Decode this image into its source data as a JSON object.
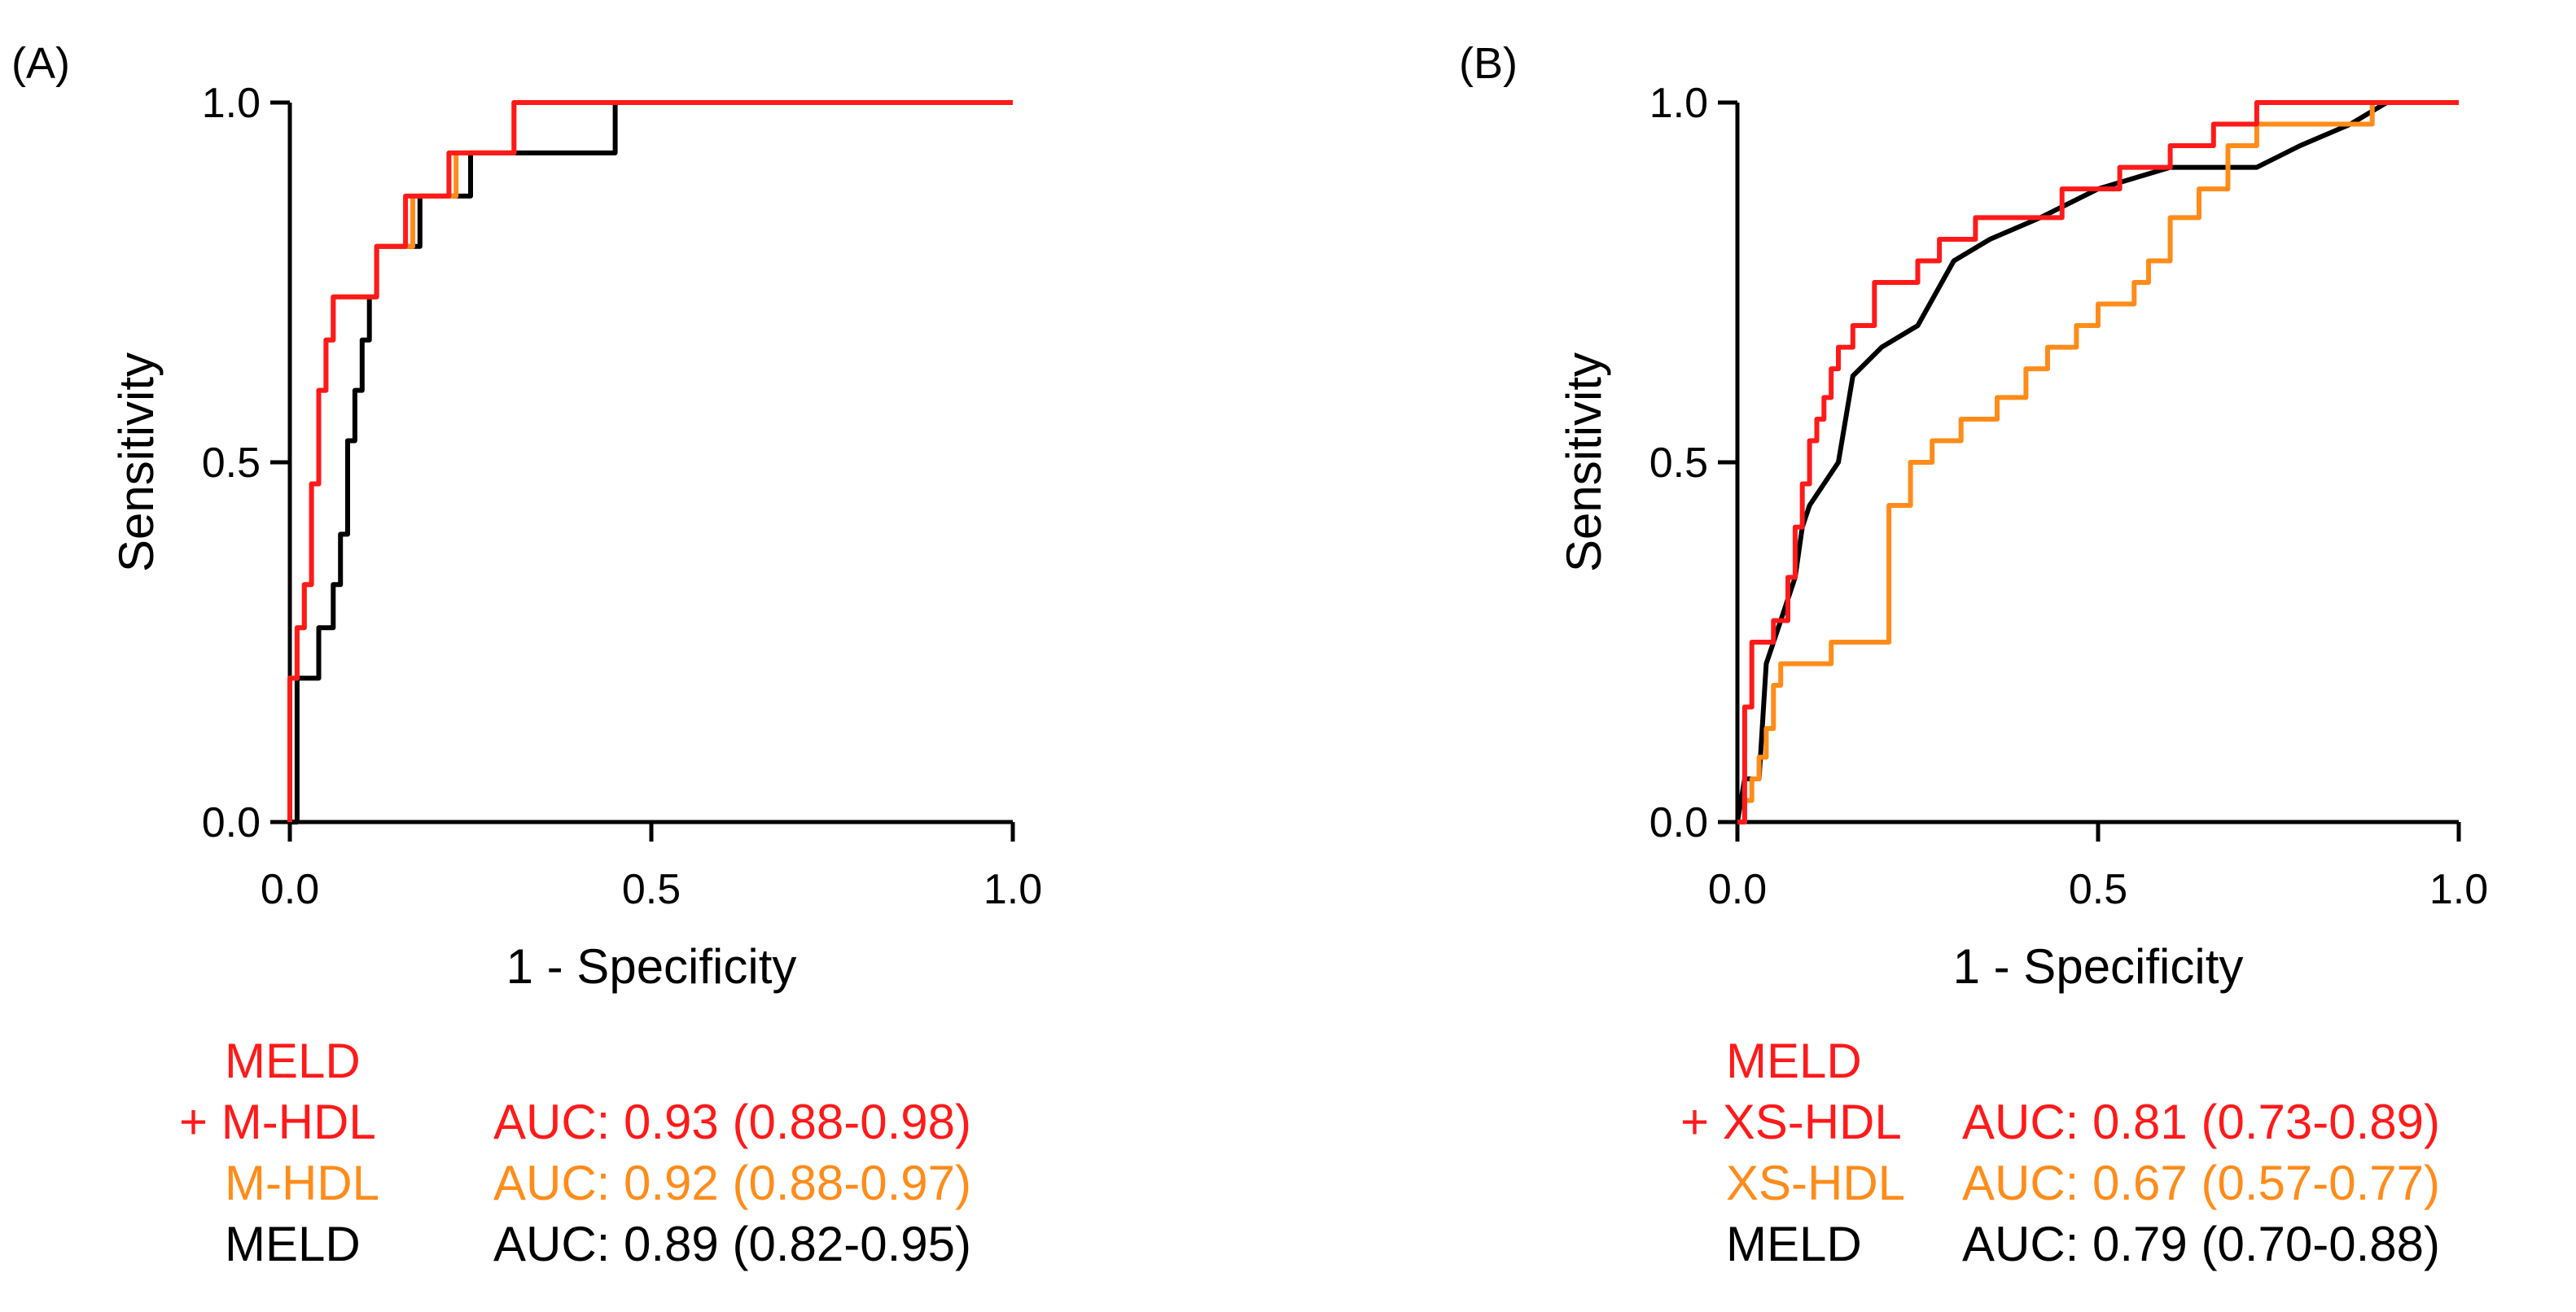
{
  "colors": {
    "combo": "#ff1a1a",
    "marker": "#ff8c1a",
    "meld": "#000000",
    "axis": "#000000"
  },
  "chart_data": [
    {
      "type": "line",
      "panel_label": "(A)",
      "xlabel": "1 - Specificity",
      "ylabel": "Sensitivity",
      "xlim": [
        0,
        1
      ],
      "ylim": [
        0,
        1
      ],
      "xticks": [
        "0.0",
        "0.5",
        "1.0"
      ],
      "yticks": [
        "0.0",
        "0.5",
        "1.0"
      ],
      "series": [
        {
          "name": "MELD + M-HDL",
          "color_key": "combo",
          "x": [
            0,
            0,
            0.01,
            0.01,
            0.02,
            0.02,
            0.03,
            0.03,
            0.04,
            0.04,
            0.05,
            0.05,
            0.06,
            0.06,
            0.12,
            0.12,
            0.16,
            0.16,
            0.22,
            0.22,
            0.31,
            0.31,
            1.0
          ],
          "y": [
            0,
            0.2,
            0.2,
            0.27,
            0.27,
            0.33,
            0.33,
            0.47,
            0.47,
            0.6,
            0.6,
            0.67,
            0.67,
            0.73,
            0.73,
            0.8,
            0.8,
            0.87,
            0.87,
            0.93,
            0.93,
            1.0,
            1.0
          ]
        },
        {
          "name": "M-HDL",
          "color_key": "marker",
          "x": [
            0,
            0,
            0.01,
            0.01,
            0.02,
            0.02,
            0.03,
            0.03,
            0.04,
            0.04,
            0.05,
            0.05,
            0.06,
            0.06,
            0.12,
            0.12,
            0.17,
            0.17,
            0.23,
            0.23,
            0.31,
            0.31,
            1.0
          ],
          "y": [
            0,
            0.2,
            0.2,
            0.27,
            0.27,
            0.33,
            0.33,
            0.47,
            0.47,
            0.6,
            0.6,
            0.67,
            0.67,
            0.73,
            0.73,
            0.8,
            0.8,
            0.87,
            0.87,
            0.93,
            0.93,
            1.0,
            1.0
          ]
        },
        {
          "name": "MELD",
          "color_key": "meld",
          "x": [
            0,
            0.01,
            0.01,
            0.04,
            0.04,
            0.06,
            0.06,
            0.07,
            0.07,
            0.08,
            0.08,
            0.09,
            0.09,
            0.1,
            0.1,
            0.11,
            0.11,
            0.12,
            0.12,
            0.13,
            0.13,
            0.18,
            0.18,
            0.25,
            0.25,
            0.28,
            0.28,
            0.45,
            0.45,
            1.0
          ],
          "y": [
            0,
            0,
            0.2,
            0.2,
            0.27,
            0.27,
            0.33,
            0.33,
            0.4,
            0.4,
            0.53,
            0.53,
            0.6,
            0.6,
            0.67,
            0.67,
            0.73,
            0.73,
            0.8,
            0.8,
            0.8,
            0.8,
            0.87,
            0.87,
            0.93,
            0.93,
            0.93,
            0.93,
            1.0,
            1.0
          ]
        }
      ],
      "legend": [
        {
          "name_lines": [
            "MELD",
            "+ M-HDL"
          ],
          "auc": "AUC: 0.93 (0.88-0.98)",
          "color_key": "combo"
        },
        {
          "name_lines": [
            "M-HDL"
          ],
          "auc": "AUC: 0.92 (0.88-0.97)",
          "color_key": "marker"
        },
        {
          "name_lines": [
            "MELD"
          ],
          "auc": "AUC: 0.89 (0.82-0.95)",
          "color_key": "meld"
        }
      ]
    },
    {
      "type": "line",
      "panel_label": "(B)",
      "xlabel": "1 - Specificity",
      "ylabel": "Sensitivity",
      "xlim": [
        0,
        1
      ],
      "ylim": [
        0,
        1
      ],
      "xticks": [
        "0.0",
        "0.5",
        "1.0"
      ],
      "yticks": [
        "0.0",
        "0.5",
        "1.0"
      ],
      "series": [
        {
          "name": "MELD + XS-HDL",
          "color_key": "combo",
          "x": [
            0,
            0.01,
            0.01,
            0.02,
            0.02,
            0.05,
            0.05,
            0.07,
            0.07,
            0.08,
            0.08,
            0.09,
            0.09,
            0.1,
            0.1,
            0.11,
            0.11,
            0.12,
            0.12,
            0.13,
            0.13,
            0.14,
            0.14,
            0.16,
            0.16,
            0.19,
            0.19,
            0.25,
            0.25,
            0.28,
            0.28,
            0.33,
            0.33,
            0.38,
            0.38,
            0.45,
            0.45,
            0.53,
            0.53,
            0.6,
            0.6,
            0.66,
            0.66,
            0.72,
            0.72,
            0.85,
            0.85,
            0.9,
            0.9,
            1.0
          ],
          "y": [
            0,
            0,
            0.16,
            0.16,
            0.25,
            0.25,
            0.28,
            0.28,
            0.34,
            0.34,
            0.41,
            0.41,
            0.47,
            0.47,
            0.53,
            0.53,
            0.56,
            0.56,
            0.59,
            0.59,
            0.63,
            0.63,
            0.66,
            0.66,
            0.69,
            0.69,
            0.75,
            0.75,
            0.78,
            0.78,
            0.81,
            0.81,
            0.84,
            0.84,
            0.84,
            0.84,
            0.88,
            0.88,
            0.91,
            0.91,
            0.94,
            0.94,
            0.97,
            0.97,
            1.0,
            1.0,
            1.0,
            1.0,
            1.0,
            1.0
          ]
        },
        {
          "name": "XS-HDL",
          "color_key": "marker",
          "x": [
            0,
            0.01,
            0.01,
            0.02,
            0.02,
            0.03,
            0.03,
            0.04,
            0.04,
            0.05,
            0.05,
            0.06,
            0.06,
            0.13,
            0.13,
            0.21,
            0.21,
            0.24,
            0.24,
            0.27,
            0.27,
            0.31,
            0.31,
            0.36,
            0.36,
            0.4,
            0.4,
            0.43,
            0.43,
            0.47,
            0.47,
            0.5,
            0.5,
            0.55,
            0.55,
            0.57,
            0.57,
            0.6,
            0.6,
            0.64,
            0.64,
            0.68,
            0.68,
            0.72,
            0.72,
            0.82,
            0.82,
            0.88,
            0.88,
            1.0
          ],
          "y": [
            0,
            0,
            0.03,
            0.03,
            0.06,
            0.06,
            0.09,
            0.09,
            0.13,
            0.13,
            0.19,
            0.19,
            0.22,
            0.22,
            0.25,
            0.25,
            0.44,
            0.44,
            0.5,
            0.5,
            0.53,
            0.53,
            0.56,
            0.56,
            0.59,
            0.59,
            0.63,
            0.63,
            0.66,
            0.66,
            0.69,
            0.69,
            0.72,
            0.72,
            0.75,
            0.75,
            0.78,
            0.78,
            0.84,
            0.84,
            0.88,
            0.88,
            0.94,
            0.94,
            0.97,
            0.97,
            0.97,
            0.97,
            1.0,
            1.0
          ]
        },
        {
          "name": "MELD",
          "color_key": "meld",
          "x": [
            0,
            0.005,
            0.01,
            0.03,
            0.04,
            0.06,
            0.08,
            0.09,
            0.1,
            0.12,
            0.14,
            0.16,
            0.2,
            0.25,
            0.3,
            0.35,
            0.42,
            0.5,
            0.6,
            0.68,
            0.72,
            0.78,
            0.85,
            0.9,
            1.0
          ],
          "y": [
            0,
            0.03,
            0.06,
            0.06,
            0.22,
            0.28,
            0.34,
            0.41,
            0.44,
            0.47,
            0.5,
            0.62,
            0.66,
            0.69,
            0.78,
            0.81,
            0.84,
            0.88,
            0.91,
            0.91,
            0.91,
            0.94,
            0.97,
            1.0,
            1.0
          ]
        }
      ],
      "legend": [
        {
          "name_lines": [
            "MELD",
            "+ XS-HDL"
          ],
          "auc": "AUC: 0.81 (0.73-0.89)",
          "color_key": "combo"
        },
        {
          "name_lines": [
            "XS-HDL"
          ],
          "auc": "AUC: 0.67 (0.57-0.77)",
          "color_key": "marker"
        },
        {
          "name_lines": [
            "MELD"
          ],
          "auc": "AUC: 0.79 (0.70-0.88)",
          "color_key": "meld"
        }
      ]
    }
  ]
}
